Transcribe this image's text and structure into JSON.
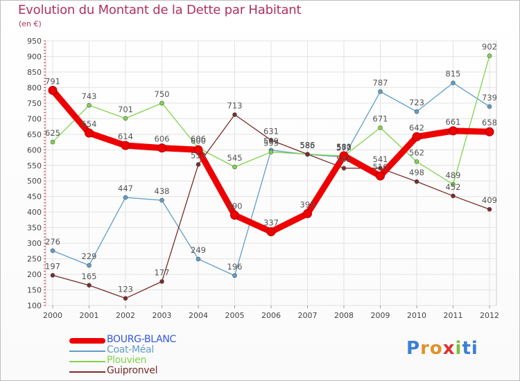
{
  "title": "Evolution du Montant de la Dette par Habitant",
  "subtitle": "(en €)",
  "logo": "Proxiti",
  "chart_data": {
    "type": "line",
    "title": "Evolution du Montant de la Dette par Habitant",
    "ylabel": "(en €)",
    "xlabel": "",
    "ylim": [
      100,
      950
    ],
    "y_ticks": [
      100,
      150,
      200,
      250,
      300,
      350,
      400,
      450,
      500,
      550,
      600,
      650,
      700,
      750,
      800,
      850,
      900,
      950
    ],
    "x": [
      "2000",
      "2001",
      "2002",
      "2003",
      "2004",
      "2005",
      "2006",
      "2007",
      "2008",
      "2009",
      "2010",
      "2011",
      "2012"
    ],
    "grid": true,
    "legend_position": "bottom-left",
    "series": [
      {
        "name": "BOURG-BLANC",
        "color": "#ee0000",
        "values": [
          791,
          654,
          614,
          606,
          600,
          390,
          337,
          395,
          581,
          516,
          642,
          661,
          658
        ]
      },
      {
        "name": "Coat-Méal",
        "color": "#5f9dc8",
        "values": [
          276,
          229,
          447,
          438,
          249,
          196,
          599,
          585,
          577,
          787,
          723,
          815,
          739
        ]
      },
      {
        "name": "Plouvien",
        "color": "#7ed44a",
        "values": [
          625,
          743,
          701,
          750,
          606,
          545,
          593,
          586,
          580,
          671,
          562,
          489,
          902
        ]
      },
      {
        "name": "Guipronvel",
        "color": "#7a2a2a",
        "values": [
          197,
          165,
          123,
          177,
          553,
          713,
          631,
          586,
          541,
          541,
          498,
          452,
          409
        ]
      }
    ],
    "data_labels": [
      [
        "791",
        "654",
        "614",
        "606",
        "600",
        "390",
        "337",
        "395",
        "581",
        "516",
        "642",
        "661",
        "658"
      ],
      [
        "276",
        "229",
        "447",
        "438",
        "249",
        "196",
        "599",
        "585",
        "577",
        "787",
        "723",
        "815",
        "739"
      ],
      [
        "625",
        "743",
        "701",
        "750",
        "606",
        "545",
        "593",
        "586",
        "580",
        "671",
        "562",
        "489",
        "902"
      ],
      [
        "197",
        "165",
        "123",
        "177",
        "553",
        "713",
        "631",
        "586",
        "541",
        "541",
        "498",
        "452",
        "409"
      ]
    ]
  }
}
